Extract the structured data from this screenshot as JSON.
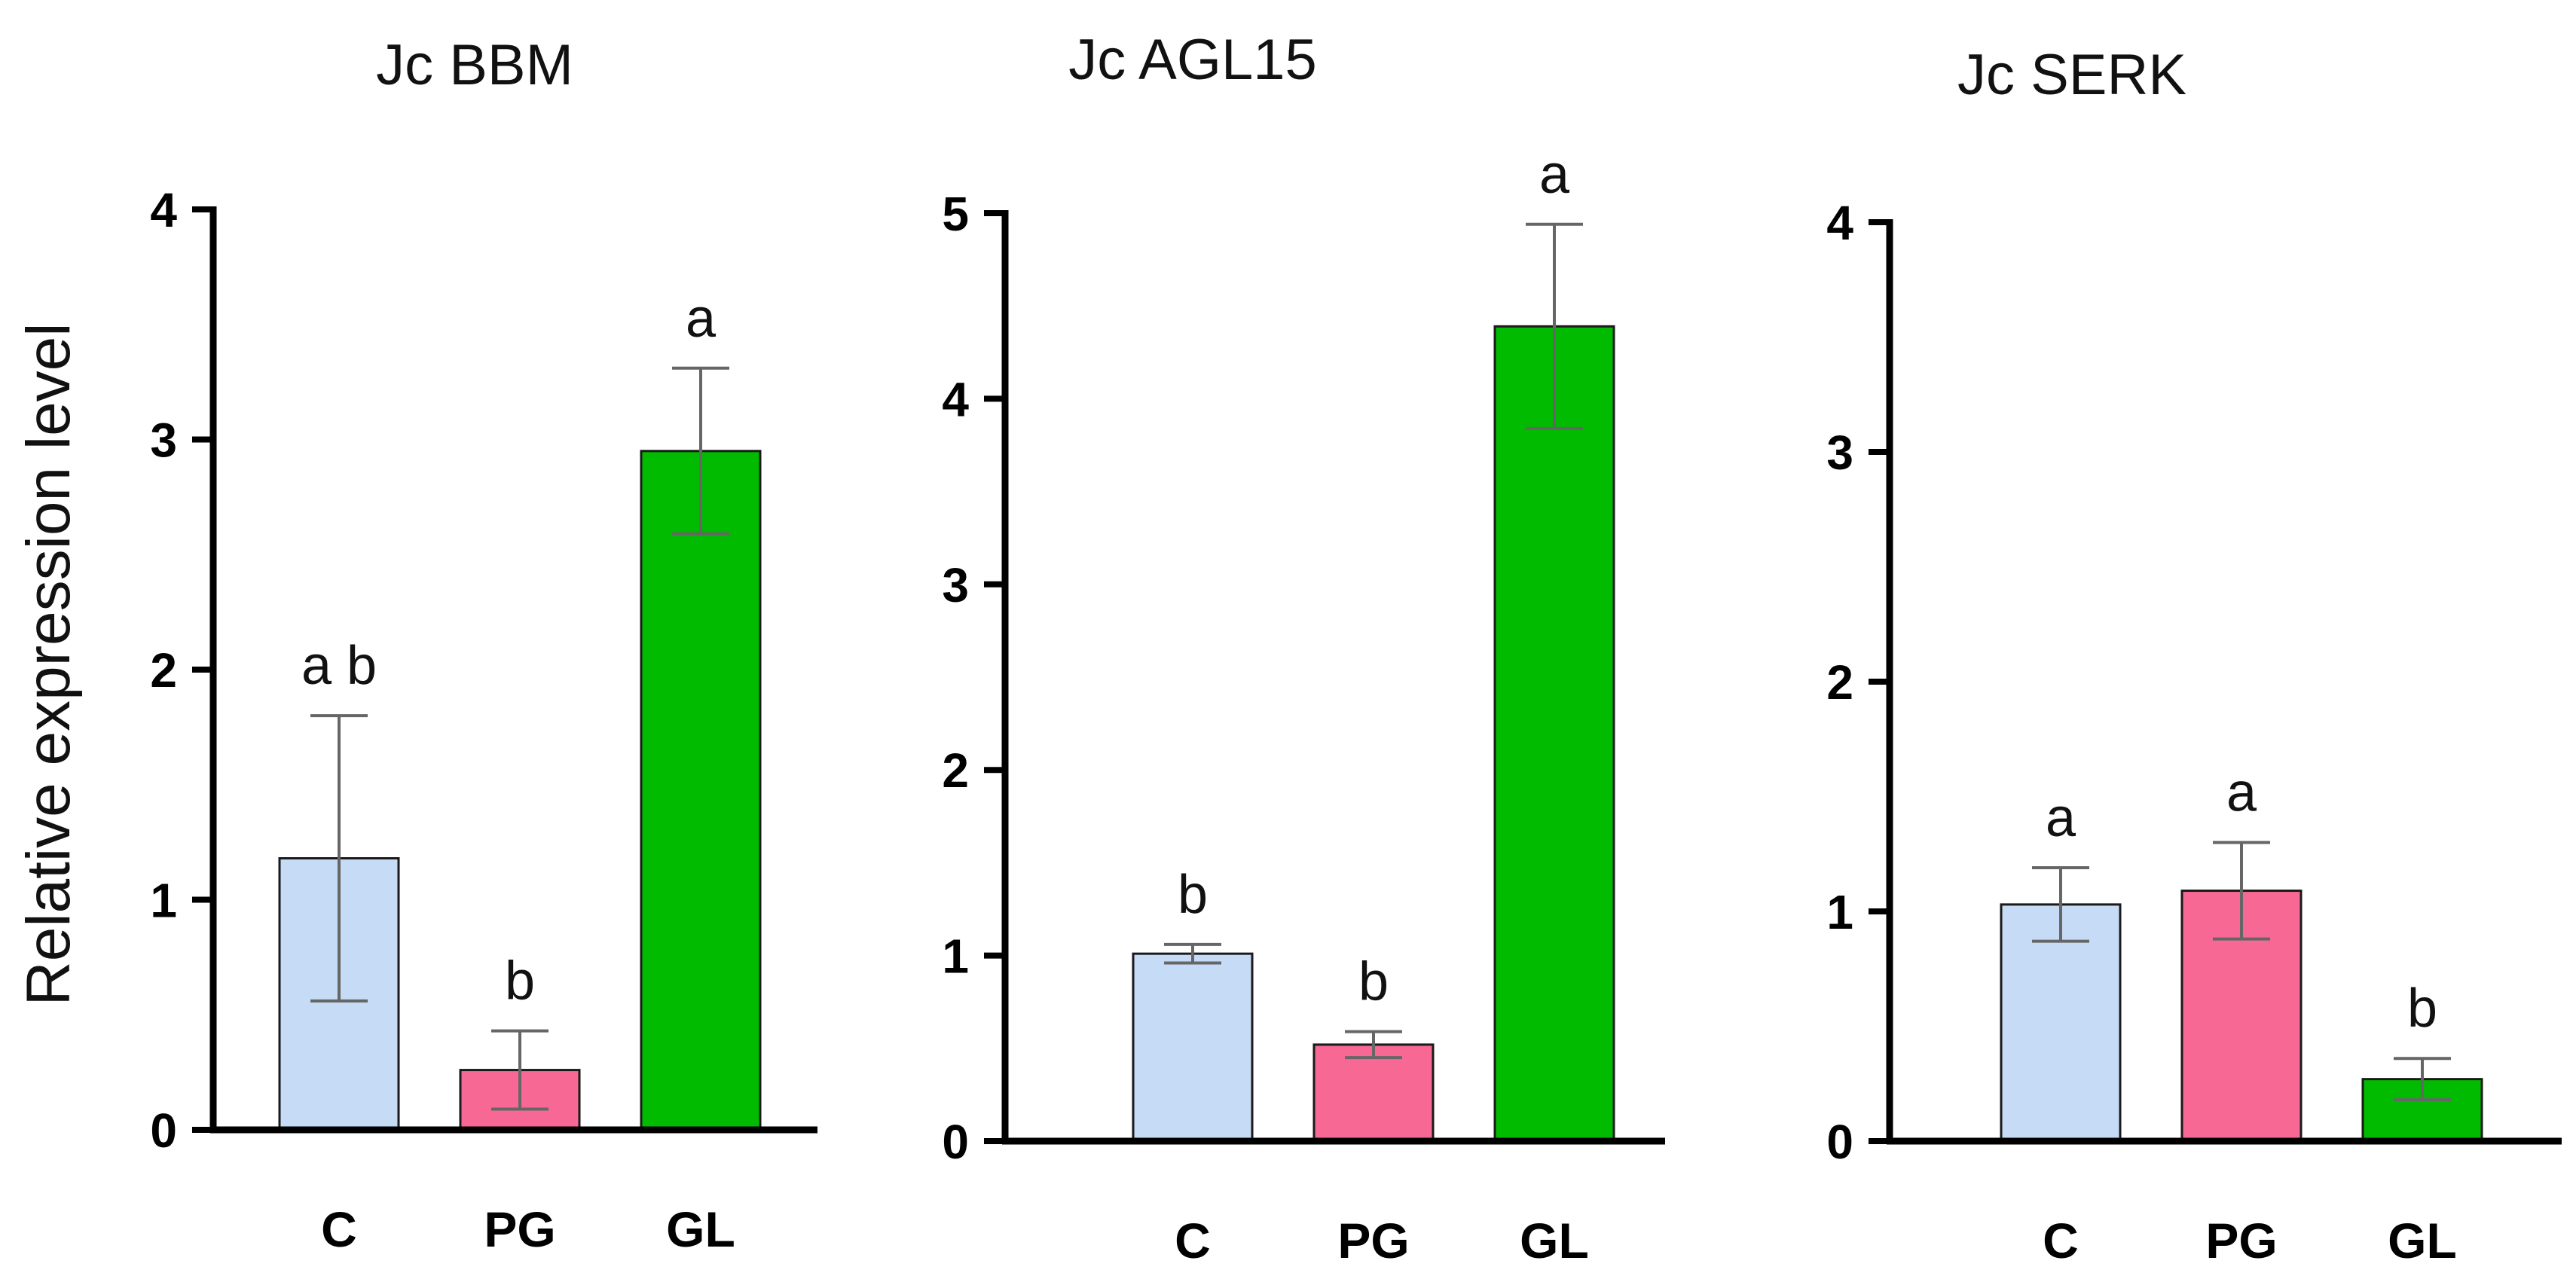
{
  "chart_data": [
    {
      "type": "bar",
      "title": "Jc BBM",
      "ylabel": "Relative expression level",
      "categories": [
        "C",
        "PG",
        "GL"
      ],
      "values": [
        1.18,
        0.26,
        2.95
      ],
      "errors": [
        0.62,
        0.17,
        0.36
      ],
      "significance": [
        "a b",
        "b",
        "a"
      ],
      "colors": [
        "#c6dbf5",
        "#f76895",
        "#00bb00"
      ],
      "ylim": [
        0,
        4
      ],
      "yticks": [
        "0",
        "1",
        "2",
        "3",
        "4"
      ],
      "grid": false
    },
    {
      "type": "bar",
      "title": "Jc AGL15",
      "ylabel": "",
      "categories": [
        "C",
        "PG",
        "GL"
      ],
      "values": [
        1.01,
        0.52,
        4.39
      ],
      "errors": [
        0.05,
        0.07,
        0.55
      ],
      "significance": [
        "b",
        "b",
        "a"
      ],
      "colors": [
        "#c6dbf5",
        "#f76895",
        "#00bb00"
      ],
      "ylim": [
        0,
        5
      ],
      "yticks": [
        "0",
        "1",
        "2",
        "3",
        "4",
        "5"
      ],
      "grid": false
    },
    {
      "type": "bar",
      "title": "Jc SERK",
      "ylabel": "",
      "categories": [
        "C",
        "PG",
        "GL"
      ],
      "values": [
        1.03,
        1.09,
        0.27
      ],
      "errors": [
        0.16,
        0.21,
        0.09
      ],
      "significance": [
        "a",
        "a",
        "b"
      ],
      "colors": [
        "#c6dbf5",
        "#f76895",
        "#00bb00"
      ],
      "ylim": [
        0,
        4
      ],
      "yticks": [
        "0",
        "1",
        "2",
        "3",
        "4"
      ],
      "grid": false
    }
  ]
}
